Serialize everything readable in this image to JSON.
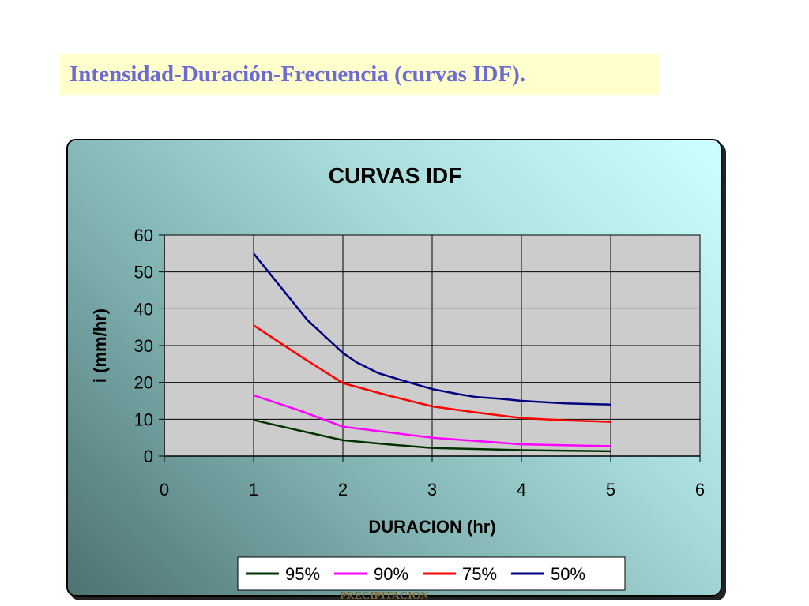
{
  "slide": {
    "title": "Intensidad-Duración-Frecuencia (curvas IDF).",
    "footer": "PRECIPITACION"
  },
  "chart_data": {
    "type": "line",
    "title": "CURVAS IDF",
    "xlabel": "DURACION (hr)",
    "ylabel": "i (mm/hr)",
    "xlim": [
      0,
      6
    ],
    "ylim": [
      0,
      60
    ],
    "xticks": [
      0,
      1,
      2,
      3,
      4,
      5,
      6
    ],
    "yticks": [
      0,
      10,
      20,
      30,
      40,
      50,
      60
    ],
    "grid": true,
    "legend_position": "bottom",
    "series": [
      {
        "name": "95%",
        "color": "#003300",
        "x": [
          1,
          1.5,
          2,
          2.5,
          3,
          4,
          5
        ],
        "y": [
          9.8,
          7.0,
          4.3,
          3.2,
          2.2,
          1.6,
          1.3
        ]
      },
      {
        "name": "90%",
        "color": "#ff00ff",
        "x": [
          1,
          1.5,
          2,
          2.5,
          3,
          4,
          5
        ],
        "y": [
          16.5,
          12.5,
          8.0,
          6.5,
          5.0,
          3.2,
          2.7
        ]
      },
      {
        "name": "75%",
        "color": "#ff0000",
        "x": [
          1,
          1.5,
          2,
          2.5,
          3,
          3.5,
          4,
          4.5,
          5
        ],
        "y": [
          35.5,
          27.5,
          19.8,
          16.5,
          13.5,
          11.8,
          10.3,
          9.7,
          9.3
        ]
      },
      {
        "name": "50%",
        "color": "#000080",
        "x": [
          1,
          1.3,
          1.6,
          2,
          2.15,
          2.4,
          2.7,
          3,
          3.3,
          3.5,
          3.75,
          4,
          4.5,
          5
        ],
        "y": [
          55,
          46,
          37,
          28,
          25.5,
          22.5,
          20.3,
          18.2,
          16.8,
          16.0,
          15.6,
          15.0,
          14.3,
          14.0
        ]
      }
    ]
  }
}
